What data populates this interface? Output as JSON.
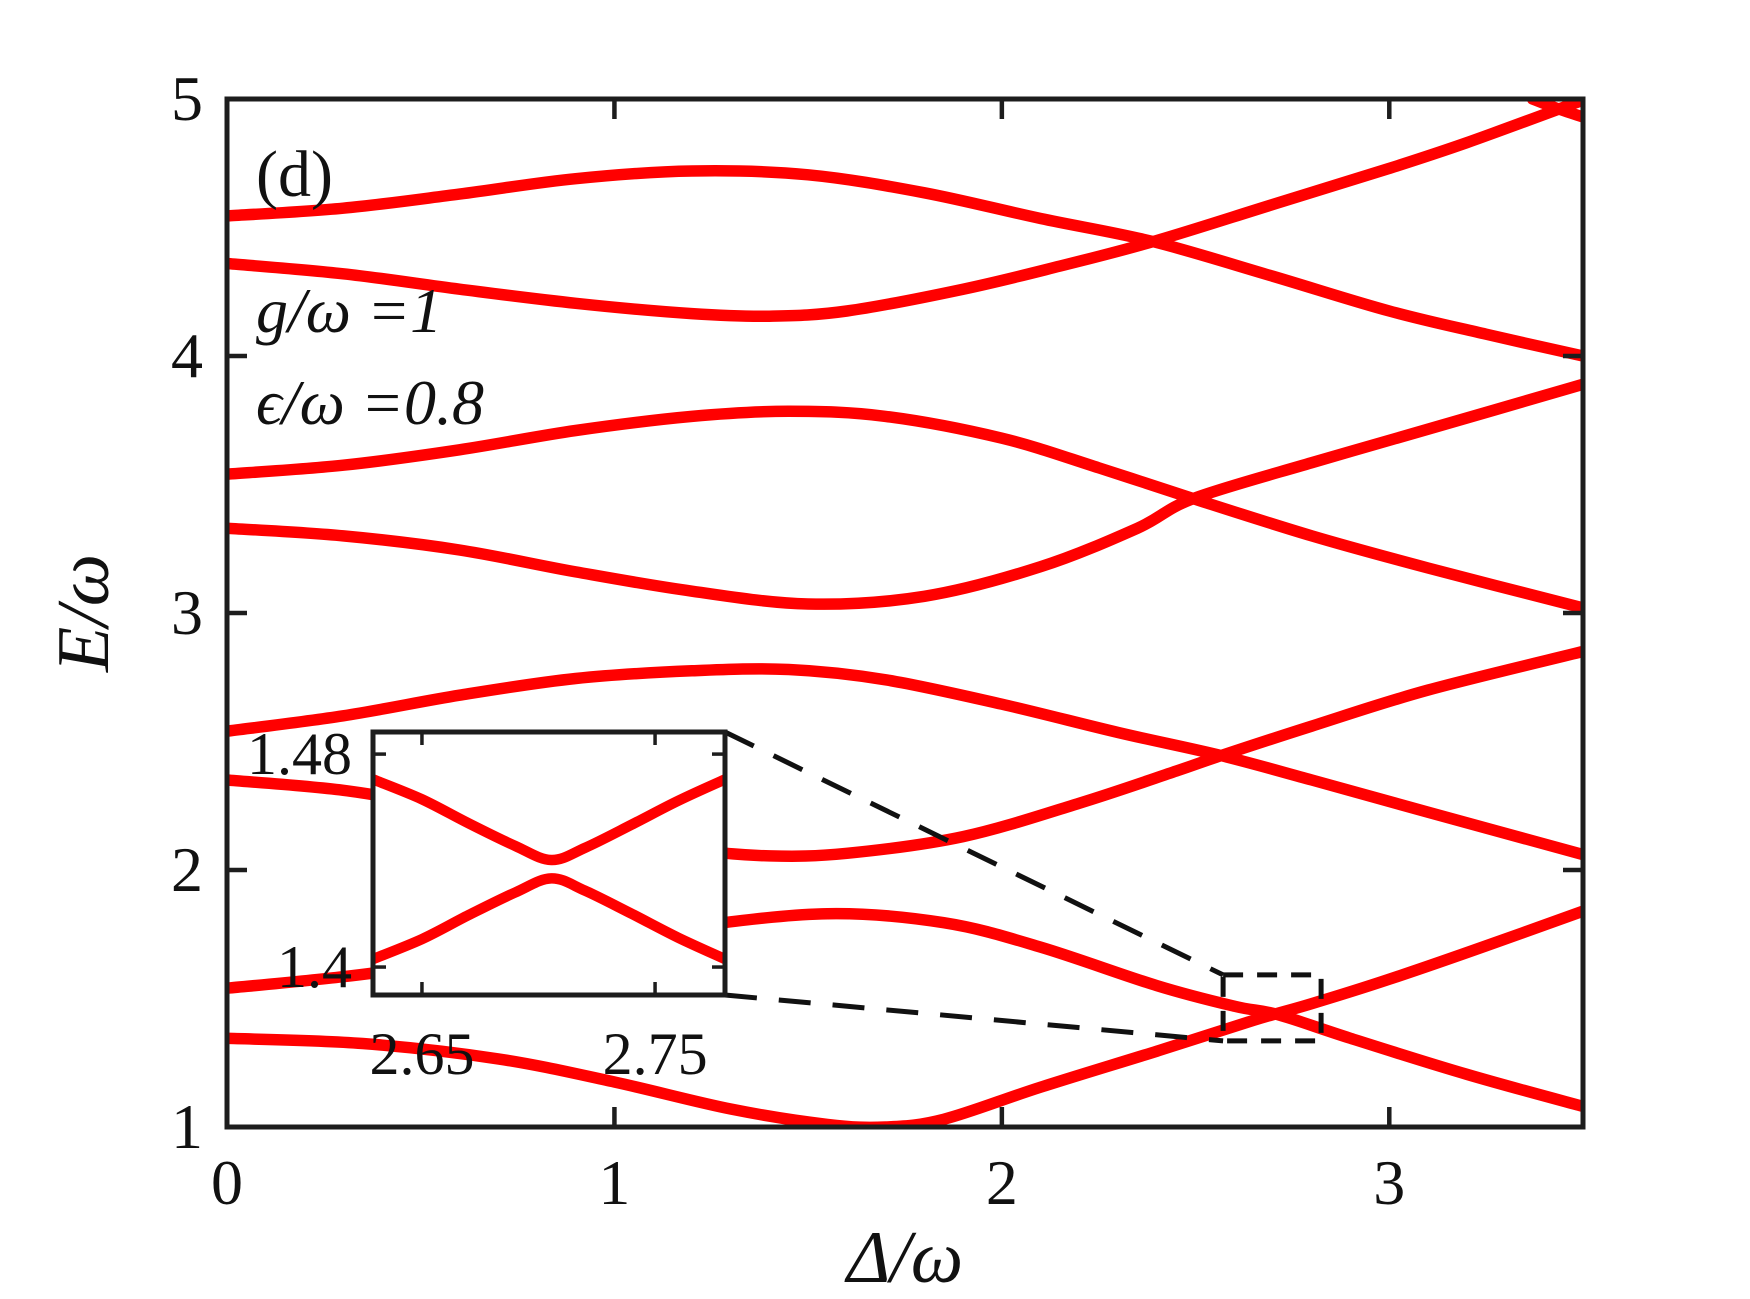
{
  "panel_label": "(d)",
  "annotations": {
    "coupling": "g/ω =1",
    "bias": "ϵ/ω =0.8"
  },
  "axes": {
    "xlabel": "Δ/ω",
    "ylabel": "E/ω",
    "x_ticks": [
      {
        "v": 0,
        "label": "0"
      },
      {
        "v": 1,
        "label": "1"
      },
      {
        "v": 2,
        "label": "2"
      },
      {
        "v": 3,
        "label": "3"
      }
    ],
    "y_ticks": [
      {
        "v": 1,
        "label": "1"
      },
      {
        "v": 2,
        "label": "2"
      },
      {
        "v": 3,
        "label": "3"
      },
      {
        "v": 4,
        "label": "4"
      },
      {
        "v": 5,
        "label": "5"
      }
    ]
  },
  "colors": {
    "curve": "#ff0000",
    "axis": "#1d1d1d",
    "text": "#111111"
  },
  "chart_data": {
    "type": "line",
    "xlabel": "Δ/ω",
    "ylabel": "E/ω",
    "xlim": [
      0,
      3.5
    ],
    "ylim": [
      1,
      5
    ],
    "grid": "off",
    "legend": "none",
    "series": [
      {
        "name": "level-1",
        "points": [
          [
            0,
            1.345
          ],
          [
            0.35,
            1.325
          ],
          [
            0.7,
            1.265
          ],
          [
            1.0,
            1.175
          ],
          [
            1.3,
            1.07
          ],
          [
            1.55,
            1.01
          ],
          [
            1.7,
            1.0
          ],
          [
            1.85,
            1.03
          ],
          [
            2.1,
            1.155
          ],
          [
            2.4,
            1.295
          ],
          [
            2.65,
            1.415
          ],
          [
            2.8,
            1.48
          ],
          [
            3.0,
            1.575
          ],
          [
            3.25,
            1.705
          ],
          [
            3.5,
            1.84
          ]
        ]
      },
      {
        "name": "level-2",
        "points": [
          [
            0,
            1.54
          ],
          [
            0.3,
            1.585
          ],
          [
            0.6,
            1.645
          ],
          [
            0.9,
            1.715
          ],
          [
            1.2,
            1.78
          ],
          [
            1.55,
            1.83
          ],
          [
            1.85,
            1.795
          ],
          [
            2.1,
            1.7
          ],
          [
            2.4,
            1.55
          ],
          [
            2.6,
            1.47
          ],
          [
            2.713,
            1.437
          ],
          [
            2.9,
            1.345
          ],
          [
            3.2,
            1.205
          ],
          [
            3.5,
            1.08
          ]
        ]
      },
      {
        "name": "level-3",
        "points": [
          [
            0,
            2.35
          ],
          [
            0.3,
            2.31
          ],
          [
            0.6,
            2.235
          ],
          [
            0.9,
            2.145
          ],
          [
            1.2,
            2.08
          ],
          [
            1.4,
            2.055
          ],
          [
            1.6,
            2.065
          ],
          [
            1.9,
            2.13
          ],
          [
            2.2,
            2.26
          ],
          [
            2.45,
            2.385
          ],
          [
            2.566,
            2.445
          ],
          [
            2.8,
            2.56
          ],
          [
            3.1,
            2.7
          ],
          [
            3.5,
            2.85
          ]
        ]
      },
      {
        "name": "level-4",
        "points": [
          [
            0,
            2.54
          ],
          [
            0.3,
            2.6
          ],
          [
            0.6,
            2.68
          ],
          [
            0.9,
            2.745
          ],
          [
            1.2,
            2.775
          ],
          [
            1.45,
            2.78
          ],
          [
            1.7,
            2.74
          ],
          [
            2.0,
            2.645
          ],
          [
            2.3,
            2.535
          ],
          [
            2.566,
            2.445
          ],
          [
            2.8,
            2.35
          ],
          [
            3.1,
            2.225
          ],
          [
            3.5,
            2.06
          ]
        ]
      },
      {
        "name": "level-5",
        "points": [
          [
            0,
            3.33
          ],
          [
            0.3,
            3.3
          ],
          [
            0.6,
            3.245
          ],
          [
            0.9,
            3.16
          ],
          [
            1.2,
            3.085
          ],
          [
            1.5,
            3.035
          ],
          [
            1.8,
            3.065
          ],
          [
            2.1,
            3.18
          ],
          [
            2.35,
            3.33
          ],
          [
            2.494,
            3.445
          ],
          [
            2.8,
            3.585
          ],
          [
            3.1,
            3.715
          ],
          [
            3.5,
            3.89
          ]
        ]
      },
      {
        "name": "level-6",
        "points": [
          [
            0,
            3.54
          ],
          [
            0.3,
            3.575
          ],
          [
            0.6,
            3.635
          ],
          [
            0.9,
            3.71
          ],
          [
            1.2,
            3.765
          ],
          [
            1.45,
            3.785
          ],
          [
            1.7,
            3.765
          ],
          [
            2.0,
            3.68
          ],
          [
            2.25,
            3.565
          ],
          [
            2.494,
            3.445
          ],
          [
            2.8,
            3.3
          ],
          [
            3.1,
            3.175
          ],
          [
            3.5,
            3.02
          ]
        ]
      },
      {
        "name": "level-7",
        "points": [
          [
            0,
            4.36
          ],
          [
            0.3,
            4.32
          ],
          [
            0.6,
            4.26
          ],
          [
            0.9,
            4.205
          ],
          [
            1.2,
            4.165
          ],
          [
            1.4,
            4.155
          ],
          [
            1.6,
            4.175
          ],
          [
            1.9,
            4.26
          ],
          [
            2.15,
            4.35
          ],
          [
            2.39,
            4.445
          ],
          [
            2.7,
            4.59
          ],
          [
            3.0,
            4.73
          ],
          [
            3.2,
            4.83
          ],
          [
            3.49,
            4.99
          ]
        ]
      },
      {
        "name": "level-8",
        "points": [
          [
            0,
            4.545
          ],
          [
            0.3,
            4.575
          ],
          [
            0.6,
            4.63
          ],
          [
            0.9,
            4.69
          ],
          [
            1.2,
            4.72
          ],
          [
            1.5,
            4.705
          ],
          [
            1.8,
            4.635
          ],
          [
            2.1,
            4.535
          ],
          [
            2.39,
            4.445
          ],
          [
            2.7,
            4.31
          ],
          [
            3.0,
            4.175
          ],
          [
            3.25,
            4.085
          ],
          [
            3.5,
            4.0
          ]
        ]
      },
      {
        "name": "level-9",
        "points": [
          [
            3.37,
            5.0
          ],
          [
            3.43,
            4.965
          ],
          [
            3.5,
            4.93
          ]
        ]
      }
    ],
    "zoom_rect": {
      "x": [
        2.571,
        2.824
      ],
      "y": [
        1.335,
        1.592
      ]
    },
    "inset": {
      "type": "line",
      "xlim": [
        2.629,
        2.78
      ],
      "ylim": [
        1.3895,
        1.4883
      ],
      "x_ticks": [
        {
          "v": 2.65,
          "label": "2.65"
        },
        {
          "v": 2.75,
          "label": "2.75"
        }
      ],
      "y_ticks": [
        {
          "v": 1.4,
          "label": "1.4"
        },
        {
          "v": 1.48,
          "label": "1.48"
        }
      ],
      "series": [
        {
          "name": "avoided-upper",
          "points": [
            [
              2.629,
              1.4705
            ],
            [
              2.65,
              1.463
            ],
            [
              2.67,
              1.454
            ],
            [
              2.69,
              1.4455
            ],
            [
              2.7055,
              1.4402
            ],
            [
              2.72,
              1.4448
            ],
            [
              2.74,
              1.4535
            ],
            [
              2.76,
              1.4625
            ],
            [
              2.78,
              1.4705
            ]
          ]
        },
        {
          "name": "avoided-lower",
          "points": [
            [
              2.629,
              1.403
            ],
            [
              2.65,
              1.4105
            ],
            [
              2.67,
              1.4195
            ],
            [
              2.69,
              1.428
            ],
            [
              2.7055,
              1.4333
            ],
            [
              2.72,
              1.4287
            ],
            [
              2.74,
              1.42
            ],
            [
              2.76,
              1.411
            ],
            [
              2.78,
              1.403
            ]
          ]
        }
      ]
    }
  }
}
